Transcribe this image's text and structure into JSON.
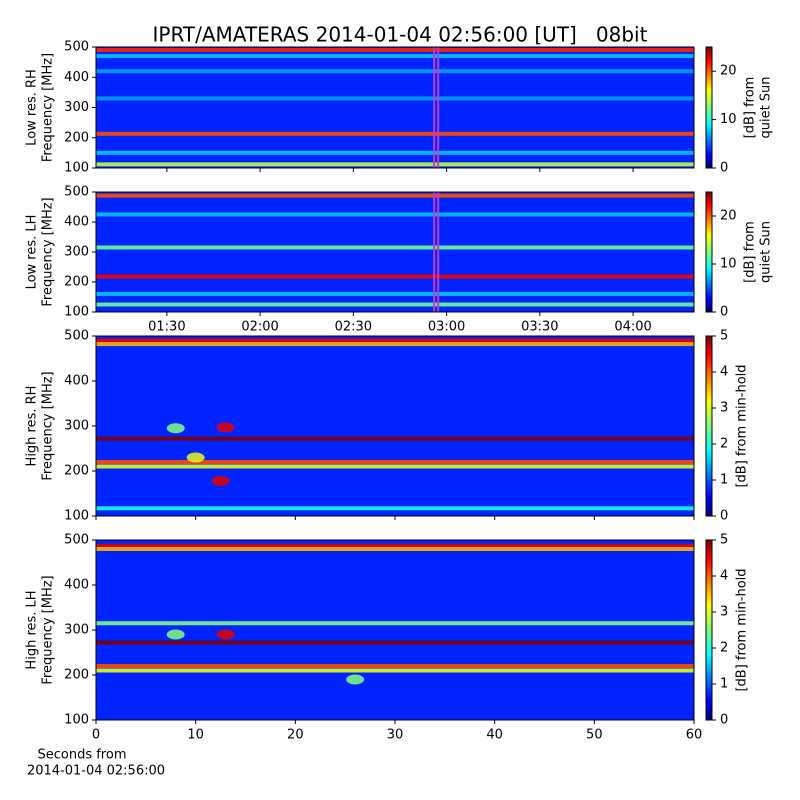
{
  "title": "IPRT/AMATERAS 2014-01-04 02:56:00 [UT]   08bit",
  "chart_data": [
    {
      "type": "heatmap",
      "ylabel": [
        "Low res. RH",
        "Frequency [MHz]"
      ],
      "xlim": [
        67.2,
        259.6
      ],
      "xticks": [
        90,
        120,
        150,
        180,
        210,
        240
      ],
      "xtick_labels": false,
      "ylim": [
        100,
        500
      ],
      "yticks": [
        100,
        200,
        300,
        400,
        500
      ],
      "cmap": "jet",
      "clim": [
        0,
        25
      ],
      "cticks": [
        0,
        10,
        20
      ],
      "clabel": [
        "[dB] from",
        "quiet Sun"
      ],
      "background": 4,
      "bands": [
        {
          "y": 490,
          "level": 21
        },
        {
          "y": 470,
          "level": 8
        },
        {
          "y": 420,
          "level": 7
        },
        {
          "y": 330,
          "level": 7
        },
        {
          "y": 213,
          "level": 20
        },
        {
          "y": 150,
          "level": 8
        },
        {
          "y": 112,
          "level": 14
        }
      ],
      "spots": [],
      "markers": [
        {
          "x": 176,
          "color": "#c03cc8"
        },
        {
          "x": 177.3,
          "color": "#c03cc8"
        }
      ]
    },
    {
      "type": "heatmap",
      "ylabel": [
        "Low res. LH",
        "Frequency [MHz]"
      ],
      "xlim": [
        67.2,
        259.6
      ],
      "xticks": [
        {
          "value": 90,
          "label": "01:30"
        },
        {
          "value": 120,
          "label": "02:00"
        },
        {
          "value": 150,
          "label": "02:30"
        },
        {
          "value": 180,
          "label": "03:00"
        },
        {
          "value": 210,
          "label": "03:30"
        },
        {
          "value": 240,
          "label": "04:00"
        }
      ],
      "xtick_labels": true,
      "ylim": [
        100,
        500
      ],
      "yticks": [
        100,
        200,
        300,
        400,
        500
      ],
      "cmap": "jet",
      "clim": [
        0,
        25
      ],
      "cticks": [
        0,
        10,
        20
      ],
      "clabel": [
        "[dB] from",
        "quiet Sun"
      ],
      "background": 4,
      "bands": [
        {
          "y": 488,
          "level": 20
        },
        {
          "y": 425,
          "level": 8
        },
        {
          "y": 315,
          "level": 12
        },
        {
          "y": 218,
          "level": 22
        },
        {
          "y": 160,
          "level": 8
        },
        {
          "y": 125,
          "level": 12
        }
      ],
      "spots": [],
      "markers": [
        {
          "x": 176,
          "color": "#c03cc8"
        },
        {
          "x": 177.3,
          "color": "#c03cc8"
        }
      ]
    },
    {
      "type": "heatmap",
      "ylabel": [
        "High res. RH",
        "Frequency [MHz]"
      ],
      "xlim": [
        0,
        60
      ],
      "xticks": [
        0,
        10,
        20,
        30,
        40,
        50,
        60
      ],
      "xtick_labels": false,
      "ylim": [
        100,
        500
      ],
      "yticks": [
        100,
        200,
        300,
        400,
        500
      ],
      "cmap": "jet",
      "clim": [
        0,
        5
      ],
      "cticks": [
        0,
        1,
        2,
        3,
        4,
        5
      ],
      "clabel": [
        "[dB] from min-hold"
      ],
      "background": 0.8,
      "bands": [
        {
          "y": 490,
          "level": 4.5
        },
        {
          "y": 482,
          "level": 3.5
        },
        {
          "y": 272,
          "level": 5
        },
        {
          "y": 220,
          "level": 4
        },
        {
          "y": 210,
          "level": 3
        },
        {
          "y": 117,
          "level": 2
        }
      ],
      "spots": [
        {
          "x": 13,
          "y": 297,
          "level": 4.5
        },
        {
          "x": 8,
          "y": 295,
          "level": 2.5
        },
        {
          "x": 12.5,
          "y": 178,
          "level": 4.5
        },
        {
          "x": 10,
          "y": 230,
          "level": 3
        }
      ],
      "markers": []
    },
    {
      "type": "heatmap",
      "ylabel": [
        "High res. LH",
        "Frequency [MHz]"
      ],
      "xlim": [
        0,
        60
      ],
      "xticks": [
        0,
        10,
        20,
        30,
        40,
        50,
        60
      ],
      "xtick_labels": true,
      "xlabel": [
        "Seconds from",
        "2014-01-04 02:56:00"
      ],
      "ylim": [
        100,
        500
      ],
      "yticks": [
        100,
        200,
        300,
        400,
        500
      ],
      "cmap": "jet",
      "clim": [
        0,
        5
      ],
      "cticks": [
        0,
        1,
        2,
        3,
        4,
        5
      ],
      "clabel": [
        "[dB] from min-hold"
      ],
      "background": 0.8,
      "bands": [
        {
          "y": 487,
          "level": 4.5
        },
        {
          "y": 480,
          "level": 3.5
        },
        {
          "y": 315,
          "level": 2.5
        },
        {
          "y": 272,
          "level": 5
        },
        {
          "y": 220,
          "level": 4
        },
        {
          "y": 210,
          "level": 3
        }
      ],
      "spots": [
        {
          "x": 13,
          "y": 290,
          "level": 4.5
        },
        {
          "x": 8,
          "y": 290,
          "level": 2.5
        },
        {
          "x": 26,
          "y": 190,
          "level": 2.5
        }
      ],
      "markers": []
    }
  ]
}
